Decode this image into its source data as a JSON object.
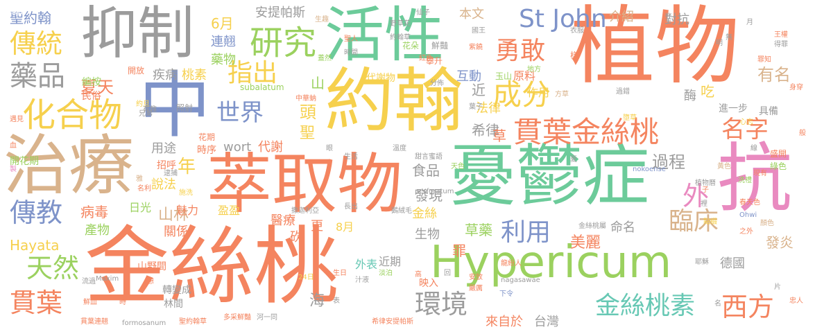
{
  "wordcloud": {
    "palette": {
      "orange": "#F4845F",
      "green": "#6CCB9A",
      "yellow": "#F6D04D",
      "tan": "#D9B38C",
      "lime": "#9BD15F",
      "gray": "#9C9C9C",
      "blue": "#7E93C9",
      "pink": "#E98AC0",
      "teal": "#67C8B4",
      "salmon": "#F08C6C"
    },
    "words": [
      {
        "text": "植物"
      },
      {
        "text": "金絲桃"
      },
      {
        "text": "萃取物"
      },
      {
        "text": "憂鬱症"
      },
      {
        "text": "Hypericum"
      },
      {
        "text": "治療"
      },
      {
        "text": "抗"
      },
      {
        "text": "約翰"
      },
      {
        "text": "活性"
      },
      {
        "text": "抑制"
      },
      {
        "text": "中"
      },
      {
        "text": "貫葉金絲桃"
      },
      {
        "text": "化合物"
      },
      {
        "text": "研究"
      },
      {
        "text": "傳統"
      },
      {
        "text": "藥品"
      },
      {
        "text": "成分"
      },
      {
        "text": "勇敢"
      },
      {
        "text": "St John"
      },
      {
        "text": "金絲桃素"
      },
      {
        "text": "傳教"
      },
      {
        "text": "天然"
      },
      {
        "text": "貫葉"
      },
      {
        "text": "環境"
      },
      {
        "text": "臨床"
      },
      {
        "text": "世界"
      },
      {
        "text": "名字"
      },
      {
        "text": "利用"
      },
      {
        "text": "指出"
      },
      {
        "text": "西方"
      },
      {
        "text": "外"
      },
      {
        "text": "聖約翰"
      },
      {
        "text": "夏天"
      },
      {
        "text": "安提帕斯"
      },
      {
        "text": "6月"
      },
      {
        "text": "連翹"
      },
      {
        "text": "藥物"
      },
      {
        "text": "桃素"
      },
      {
        "text": "疾病"
      },
      {
        "text": "山"
      },
      {
        "text": "年"
      },
      {
        "text": "頭"
      },
      {
        "text": "聖"
      },
      {
        "text": "wort"
      },
      {
        "text": "代謝"
      },
      {
        "text": "用途"
      },
      {
        "text": "說法"
      },
      {
        "text": "山林"
      },
      {
        "text": "傳教"
      },
      {
        "text": "病毒"
      },
      {
        "text": "Hayata"
      },
      {
        "text": "希律"
      },
      {
        "text": "草"
      },
      {
        "text": "過程"
      },
      {
        "text": "對抗"
      },
      {
        "text": "有名"
      },
      {
        "text": "介紹"
      },
      {
        "text": "本文"
      },
      {
        "text": "互動"
      },
      {
        "text": "原料"
      },
      {
        "text": "作用"
      },
      {
        "text": "法律"
      },
      {
        "text": "近"
      },
      {
        "text": "吃"
      },
      {
        "text": "酶"
      },
      {
        "text": "食品"
      },
      {
        "text": "發現"
      },
      {
        "text": "金絲"
      },
      {
        "text": "生物"
      },
      {
        "text": "草藥"
      },
      {
        "text": "美麗"
      },
      {
        "text": "命名"
      },
      {
        "text": "發炎"
      },
      {
        "text": "德國"
      },
      {
        "text": "台灣"
      },
      {
        "text": "來自於"
      },
      {
        "text": "罪"
      },
      {
        "text": "醫療"
      },
      {
        "text": "更"
      },
      {
        "text": "8月"
      },
      {
        "text": "砍"
      },
      {
        "text": "關係"
      },
      {
        "text": "產物"
      },
      {
        "text": "日光"
      },
      {
        "text": "魅力"
      },
      {
        "text": "盈盈"
      },
      {
        "text": "海"
      },
      {
        "text": "外表"
      },
      {
        "text": "近期"
      },
      {
        "text": "映入"
      },
      {
        "text": "山野間"
      },
      {
        "text": "轉變成"
      },
      {
        "text": "林間"
      },
      {
        "text": "時序"
      },
      {
        "text": "招呼"
      },
      {
        "text": "民俗"
      },
      {
        "text": "編按"
      },
      {
        "text": "開放"
      },
      {
        "text": "開花期"
      },
      {
        "text": "遇見"
      },
      {
        "text": "兄弟"
      },
      {
        "text": "約旦"
      },
      {
        "text": "有趣"
      },
      {
        "text": "照射"
      },
      {
        "text": "花期"
      },
      {
        "text": "subalatum"
      },
      {
        "text": "中華蚋"
      },
      {
        "text": "代謝物"
      },
      {
        "text": "生趣"
      },
      {
        "text": "聖人"
      },
      {
        "text": "時間"
      },
      {
        "text": "蓋然"
      },
      {
        "text": "野草花"
      },
      {
        "text": "約翰草"
      },
      {
        "text": "花朵"
      },
      {
        "text": "紅色"
      },
      {
        "text": "仙子"
      },
      {
        "text": "鮮豔"
      },
      {
        "text": "攀升"
      },
      {
        "text": "國王"
      },
      {
        "text": "紫饒"
      },
      {
        "text": "衣服"
      },
      {
        "text": "王權"
      },
      {
        "text": "得罪"
      },
      {
        "text": "月"
      },
      {
        "text": "地方"
      },
      {
        "text": "樣"
      },
      {
        "text": "方草"
      },
      {
        "text": "葉子"
      },
      {
        "text": "玉山"
      },
      {
        "text": "分佈"
      },
      {
        "text": "進一步"
      },
      {
        "text": "具備"
      },
      {
        "text": "心志"
      },
      {
        "text": "盛開"
      },
      {
        "text": "綠色"
      },
      {
        "text": "現有"
      },
      {
        "text": "黃色"
      },
      {
        "text": "植物曆"
      },
      {
        "text": "nokoense"
      },
      {
        "text": "perforatum"
      },
      {
        "text": "甜言蜜語"
      },
      {
        "text": "溫度"
      },
      {
        "text": "生活"
      },
      {
        "text": "天色"
      },
      {
        "text": "洗禮"
      },
      {
        "text": "春天色"
      },
      {
        "text": "Ohwi"
      },
      {
        "text": "顏色"
      },
      {
        "text": "點綴"
      },
      {
        "text": "金絲桃屬"
      },
      {
        "text": "之外"
      },
      {
        "text": "耶穌"
      },
      {
        "text": "高"
      },
      {
        "text": "回"
      },
      {
        "text": "安放"
      },
      {
        "text": "淡泊"
      },
      {
        "text": "汁液"
      },
      {
        "text": "眼"
      },
      {
        "text": "長出"
      },
      {
        "text": "撒迦利亞"
      },
      {
        "text": "鵝絨毛"
      },
      {
        "text": "過錯"
      },
      {
        "text": "夏"
      },
      {
        "text": "子"
      },
      {
        "text": "裡"
      },
      {
        "text": "nagasawae"
      },
      {
        "text": "下令"
      },
      {
        "text": "嚴厲"
      },
      {
        "text": "希律安提帕斯"
      },
      {
        "text": "河一同"
      },
      {
        "text": "多采鮮豔"
      },
      {
        "text": "聖約翰草"
      },
      {
        "text": "formosanum"
      },
      {
        "text": "貫葉連翹"
      },
      {
        "text": "流過"
      },
      {
        "text": "Maxim"
      },
      {
        "text": "24日"
      },
      {
        "text": "生日"
      },
      {
        "text": "時"
      },
      {
        "text": "想"
      },
      {
        "text": "鮮血"
      },
      {
        "text": "血"
      },
      {
        "text": "製"
      },
      {
        "text": "逮捕"
      },
      {
        "text": "名利"
      },
      {
        "text": "施洗"
      },
      {
        "text": "雅"
      },
      {
        "text": "表"
      },
      {
        "text": "片"
      },
      {
        "text": "忠人"
      },
      {
        "text": "身穿"
      },
      {
        "text": "般"
      },
      {
        "text": "線"
      },
      {
        "text": "名"
      },
      {
        "text": "無"
      },
      {
        "text": "墮草"
      },
      {
        "text": "龍紛人"
      },
      {
        "text": "明"
      },
      {
        "text": "罪知"
      }
    ]
  }
}
